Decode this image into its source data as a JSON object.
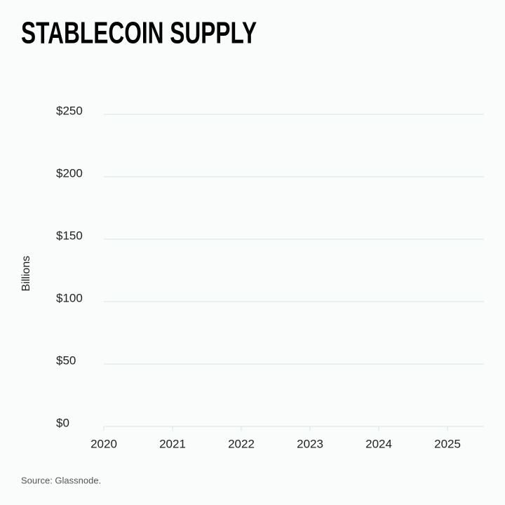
{
  "chart_data": {
    "type": "line",
    "title": "STABLECOIN SUPPLY",
    "y_label": "Billions",
    "source": "Source: Glassnode.",
    "series": [],
    "xlim": [
      2020,
      2025.53
    ],
    "xticks": [
      2020,
      2021,
      2022,
      2023,
      2024,
      2025
    ],
    "ylim": [
      0,
      250
    ],
    "yticks": [
      {
        "value": 0,
        "label": "$0"
      },
      {
        "value": 50,
        "label": "$50"
      },
      {
        "value": 100,
        "label": "$100"
      },
      {
        "value": 150,
        "label": "$150"
      },
      {
        "value": 200,
        "label": "$200"
      },
      {
        "value": 250,
        "label": "$250"
      }
    ],
    "grid": true
  }
}
